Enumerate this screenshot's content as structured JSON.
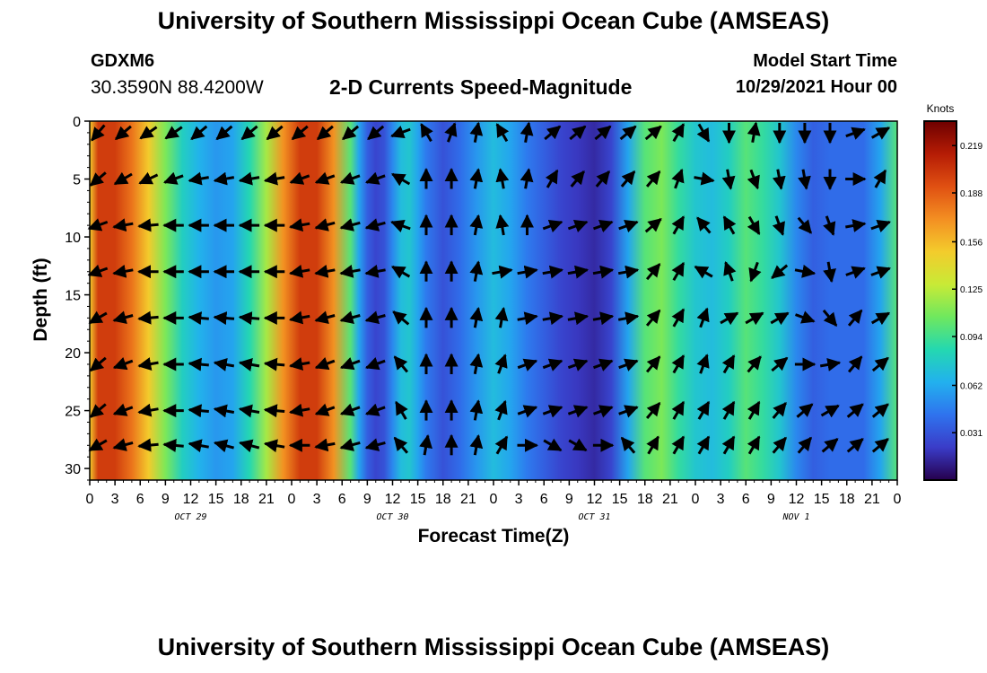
{
  "header": {
    "title": "University of Southern Mississippi Ocean Cube (AMSEAS)",
    "station_id": "GDXM6",
    "coordinates": "30.3590N  88.4200W",
    "plot_title": "2-D Currents Speed-Magnitude",
    "model_start_label": "Model Start Time",
    "model_start_value": "10/29/2021 Hour 00"
  },
  "footer": {
    "title": "University of Southern Mississippi Ocean Cube (AMSEAS)"
  },
  "chart_data": {
    "type": "heatmap",
    "xlabel": "Forecast Time(Z)",
    "ylabel": "Depth (ft)",
    "x_tick_labels": [
      "0",
      "3",
      "6",
      "9",
      "12",
      "15",
      "18",
      "21",
      "0",
      "3",
      "6",
      "9",
      "12",
      "15",
      "18",
      "21",
      "0",
      "3",
      "6",
      "9",
      "12",
      "15",
      "18",
      "21",
      "0",
      "3",
      "6",
      "9",
      "12",
      "15",
      "18",
      "21",
      "0"
    ],
    "date_labels": [
      {
        "label": "OCT 29",
        "hour": 12
      },
      {
        "label": "OCT 30",
        "hour": 36
      },
      {
        "label": "OCT 31",
        "hour": 60
      },
      {
        "label": "NOV 1",
        "hour": 84
      }
    ],
    "xlim": [
      0,
      96
    ],
    "ylim": [
      31,
      0
    ],
    "y_ticks": [
      0,
      5,
      10,
      15,
      20,
      25,
      30
    ],
    "colorbar": {
      "unit": "Knots",
      "range": [
        0,
        0.235
      ],
      "tick_labels": [
        "0.219",
        "0.188",
        "0.156",
        "0.125",
        "0.094",
        "0.062",
        "0.031"
      ],
      "tick_values": [
        0.219,
        0.188,
        0.156,
        0.125,
        0.094,
        0.062,
        0.031
      ],
      "colormap": [
        "#26004d",
        "#3a3cc8",
        "#2f73ee",
        "#22b1ee",
        "#24d8b0",
        "#6fe85e",
        "#c8ea36",
        "#f3cc2c",
        "#f38f22",
        "#e05012",
        "#b51c05",
        "#6e0000"
      ]
    },
    "speed_profile": {
      "hours": [
        0,
        1,
        3,
        5,
        7,
        9,
        11,
        13,
        15,
        17,
        19,
        21,
        23,
        25,
        27,
        29,
        31,
        32,
        33,
        34,
        35,
        36,
        37,
        38,
        39,
        40,
        42,
        44,
        46,
        48,
        50,
        52,
        54,
        56,
        58,
        60,
        62,
        64,
        66,
        68,
        70,
        72,
        74,
        76,
        78,
        80,
        82,
        84,
        86,
        88,
        90,
        92,
        94,
        96
      ],
      "speed": [
        0.15,
        0.2,
        0.2,
        0.18,
        0.15,
        0.11,
        0.08,
        0.065,
        0.055,
        0.06,
        0.085,
        0.12,
        0.17,
        0.2,
        0.2,
        0.17,
        0.1,
        0.06,
        0.035,
        0.025,
        0.03,
        0.05,
        0.07,
        0.075,
        0.06,
        0.045,
        0.03,
        0.04,
        0.055,
        0.07,
        0.06,
        0.045,
        0.035,
        0.025,
        0.02,
        0.015,
        0.025,
        0.06,
        0.1,
        0.11,
        0.09,
        0.075,
        0.07,
        0.08,
        0.1,
        0.09,
        0.075,
        0.05,
        0.035,
        0.04,
        0.04,
        0.04,
        0.06,
        0.1
      ]
    },
    "vector_grid": {
      "hours": [
        1,
        4,
        7,
        10,
        13,
        16,
        19,
        22,
        25,
        28,
        31,
        34,
        37,
        40,
        43,
        46,
        49,
        52,
        55,
        58,
        61,
        64,
        67,
        70,
        73,
        76,
        79,
        82,
        85,
        88,
        91,
        94
      ],
      "depths": [
        1,
        5,
        9,
        13,
        17,
        21,
        25,
        28
      ],
      "directions_deg": [
        [
          220,
          230,
          235,
          235,
          230,
          230,
          230,
          230,
          230,
          230,
          230,
          230,
          250,
          330,
          20,
          10,
          330,
          10,
          50,
          50,
          50,
          50,
          50,
          30,
          150,
          180,
          10,
          180,
          180,
          180,
          70,
          60
        ],
        [
          230,
          240,
          245,
          250,
          260,
          260,
          260,
          260,
          250,
          250,
          250,
          250,
          300,
          0,
          0,
          10,
          350,
          10,
          30,
          40,
          40,
          40,
          40,
          20,
          100,
          170,
          160,
          170,
          170,
          180,
          90,
          30
        ],
        [
          250,
          260,
          265,
          270,
          270,
          270,
          270,
          270,
          260,
          255,
          255,
          255,
          290,
          0,
          0,
          10,
          350,
          0,
          70,
          70,
          70,
          70,
          50,
          30,
          320,
          330,
          150,
          160,
          140,
          160,
          80,
          70
        ],
        [
          250,
          260,
          270,
          270,
          270,
          270,
          270,
          270,
          260,
          260,
          260,
          260,
          300,
          0,
          0,
          10,
          80,
          80,
          80,
          80,
          80,
          80,
          40,
          30,
          300,
          340,
          200,
          230,
          100,
          170,
          70,
          70
        ],
        [
          240,
          255,
          265,
          270,
          275,
          275,
          275,
          270,
          260,
          255,
          255,
          255,
          310,
          0,
          0,
          10,
          10,
          80,
          80,
          80,
          80,
          80,
          40,
          30,
          20,
          60,
          60,
          60,
          110,
          140,
          40,
          60
        ],
        [
          230,
          250,
          260,
          270,
          275,
          280,
          280,
          275,
          260,
          250,
          250,
          250,
          320,
          0,
          0,
          10,
          20,
          70,
          70,
          70,
          70,
          70,
          40,
          30,
          20,
          30,
          40,
          50,
          90,
          80,
          40,
          50
        ],
        [
          230,
          250,
          260,
          270,
          275,
          280,
          280,
          275,
          260,
          250,
          250,
          250,
          330,
          0,
          0,
          10,
          20,
          70,
          70,
          70,
          70,
          70,
          40,
          30,
          30,
          30,
          30,
          40,
          50,
          60,
          50,
          50
        ],
        [
          240,
          255,
          265,
          275,
          280,
          285,
          285,
          280,
          270,
          260,
          255,
          255,
          320,
          10,
          0,
          10,
          30,
          90,
          120,
          120,
          90,
          320,
          30,
          30,
          30,
          30,
          30,
          40,
          40,
          50,
          50,
          50
        ]
      ]
    }
  }
}
